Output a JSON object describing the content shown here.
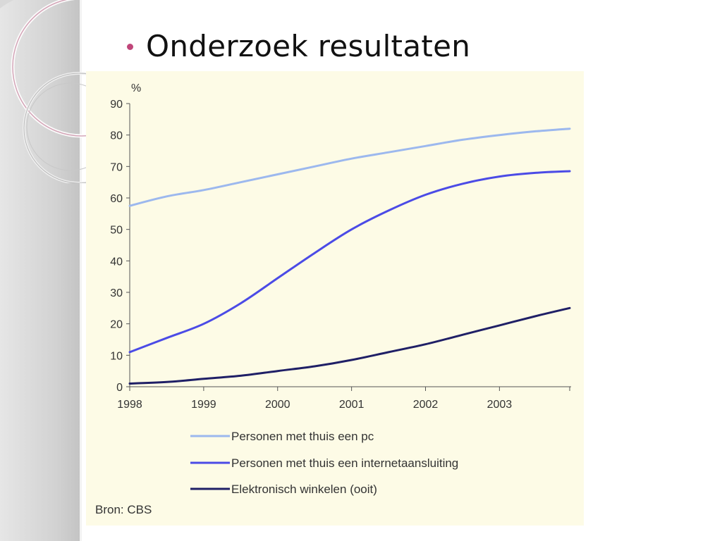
{
  "slide": {
    "title": "Onderzoek resultaten"
  },
  "chart_data": {
    "type": "line",
    "ylabel": "%",
    "xlabel": "",
    "ylim": [
      0,
      90
    ],
    "xlim": [
      1998,
      2003.95
    ],
    "yticks": [
      0,
      10,
      20,
      30,
      40,
      50,
      60,
      70,
      80,
      90
    ],
    "xticks": [
      1998,
      1999,
      2000,
      2001,
      2002,
      2003
    ],
    "xtick_labels": [
      "1998",
      "1999",
      "2000",
      "2001",
      "2002",
      "2003"
    ],
    "grid": false,
    "legend_position": "bottom",
    "x": [
      1998.0,
      1998.5,
      1999.0,
      1999.5,
      2000.0,
      2000.5,
      2001.0,
      2001.5,
      2002.0,
      2002.5,
      2003.0,
      2003.5,
      2003.95
    ],
    "series": [
      {
        "name": "Personen met thuis een pc",
        "color": "#9cb8ee",
        "values": [
          57.5,
          60.5,
          62.5,
          65.0,
          67.5,
          70.0,
          72.5,
          74.5,
          76.5,
          78.5,
          80.0,
          81.2,
          82.0
        ]
      },
      {
        "name": "Personen met thuis een internetaansluiting",
        "color": "#4b4be6",
        "values": [
          11.0,
          15.5,
          20.0,
          26.5,
          34.5,
          42.5,
          50.0,
          56.0,
          61.0,
          64.5,
          66.8,
          68.0,
          68.5
        ]
      },
      {
        "name": "Elektronisch winkelen (ooit)",
        "color": "#1f1f66",
        "values": [
          1.0,
          1.5,
          2.5,
          3.5,
          5.0,
          6.5,
          8.5,
          11.0,
          13.5,
          16.5,
          19.5,
          22.5,
          25.0
        ]
      }
    ],
    "source": "Bron: CBS"
  }
}
